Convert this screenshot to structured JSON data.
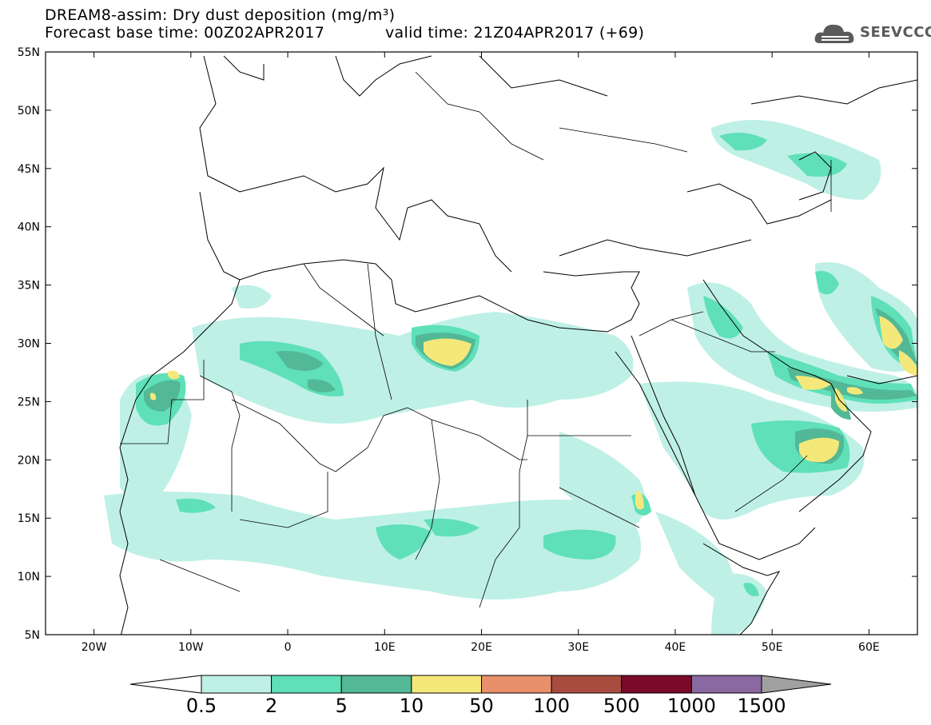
{
  "header": {
    "title_line1": "DREAM8-assim: Dry dust deposition (mg/m³)",
    "title_line2": "Forecast base time: 00Z02APR2017",
    "valid_time": "valid time: 21Z04APR2017 (+69)",
    "logo_text": "SEEVCCC",
    "logo_icon": "cloud-icon"
  },
  "map": {
    "lon_range": [
      -25,
      65
    ],
    "lat_range": [
      5,
      55
    ],
    "lat_labels": [
      "55N",
      "50N",
      "45N",
      "40N",
      "35N",
      "30N",
      "25N",
      "20N",
      "15N",
      "10N",
      "5N"
    ],
    "lon_labels": [
      "20W",
      "10W",
      "0",
      "10E",
      "20E",
      "30E",
      "40E",
      "50E",
      "60E"
    ]
  },
  "colorbar": {
    "labels": [
      "0.5",
      "2",
      "5",
      "10",
      "50",
      "100",
      "500",
      "1000",
      "1500"
    ],
    "colors": [
      "#ffffff",
      "#bff0e6",
      "#5fe0b8",
      "#52b896",
      "#f5e87a",
      "#e8906a",
      "#a84c40",
      "#7a0a28",
      "#8a68a0",
      "#a0a0a0"
    ]
  }
}
